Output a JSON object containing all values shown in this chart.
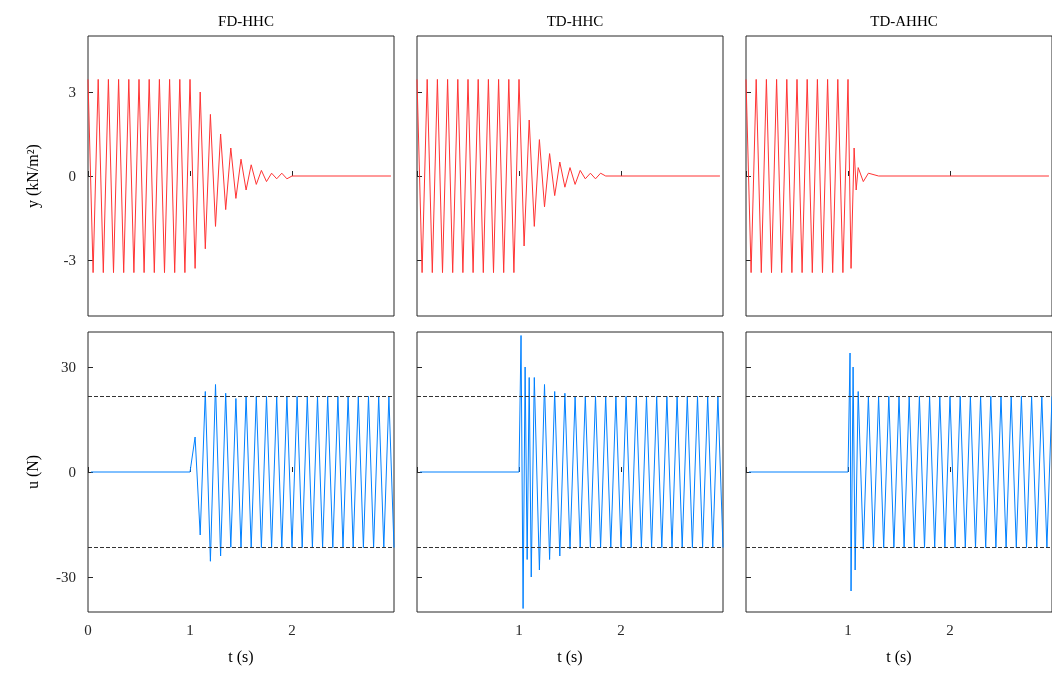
{
  "chart_data": [
    {
      "type": "line",
      "title": "FD-HHC",
      "ylabel": "y (kN/m²)",
      "xlim": [
        0,
        3
      ],
      "xticks": [
        0,
        1,
        2
      ],
      "ylim": [
        -5,
        5
      ],
      "yticks": [
        -3,
        0,
        3
      ],
      "tick_labels": "y",
      "marker": "none",
      "series": [
        {
          "color": "#ff3333",
          "x": [
            0,
            0.05,
            0.1,
            0.15,
            0.2,
            0.25,
            0.3,
            0.35,
            0.4,
            0.45,
            0.5,
            0.55,
            0.6,
            0.65,
            0.7,
            0.75,
            0.8,
            0.85,
            0.9,
            0.95,
            1.0,
            1.05,
            1.1,
            1.15,
            1.2,
            1.25,
            1.3,
            1.35,
            1.4,
            1.45,
            1.5,
            1.55,
            1.6,
            1.65,
            1.7,
            1.75,
            1.8,
            1.85,
            1.9,
            1.95,
            2.0,
            2.97
          ],
          "values": [
            3.45,
            -3.45,
            3.45,
            -3.45,
            3.45,
            -3.45,
            3.45,
            -3.45,
            3.45,
            -3.45,
            3.45,
            -3.45,
            3.45,
            -3.45,
            3.45,
            -3.45,
            3.45,
            -3.45,
            3.45,
            -3.45,
            3.45,
            -3.3,
            3.0,
            -2.6,
            2.2,
            -1.8,
            1.5,
            -1.2,
            1.0,
            -0.8,
            0.6,
            -0.5,
            0.4,
            -0.3,
            0.2,
            -0.2,
            0.1,
            -0.1,
            0.1,
            -0.1,
            0,
            0
          ]
        }
      ]
    },
    {
      "type": "line",
      "title": "TD-HHC",
      "xlim": [
        0,
        3
      ],
      "xticks": [
        0,
        1,
        2
      ],
      "ylim": [
        -5,
        5
      ],
      "yticks": [
        -3,
        0,
        3
      ],
      "tick_labels": false,
      "marker": "none",
      "series": [
        {
          "color": "#ff3333",
          "x": [
            0,
            0.05,
            0.1,
            0.15,
            0.2,
            0.25,
            0.3,
            0.35,
            0.4,
            0.45,
            0.5,
            0.55,
            0.6,
            0.65,
            0.7,
            0.75,
            0.8,
            0.85,
            0.9,
            0.95,
            1.0,
            1.05,
            1.1,
            1.15,
            1.2,
            1.25,
            1.3,
            1.35,
            1.4,
            1.45,
            1.5,
            1.55,
            1.6,
            1.65,
            1.7,
            1.75,
            1.8,
            1.85,
            2.97
          ],
          "values": [
            3.45,
            -3.45,
            3.45,
            -3.45,
            3.45,
            -3.45,
            3.45,
            -3.45,
            3.45,
            -3.45,
            3.45,
            -3.45,
            3.45,
            -3.45,
            3.45,
            -3.45,
            3.45,
            -3.45,
            3.45,
            -3.45,
            3.45,
            -2.5,
            2.0,
            -1.8,
            1.3,
            -1.1,
            0.8,
            -0.7,
            0.5,
            -0.4,
            0.3,
            -0.3,
            0.2,
            -0.1,
            0.1,
            -0.1,
            0.1,
            0,
            0
          ]
        }
      ]
    },
    {
      "type": "line",
      "title": "TD-AHHC",
      "xlim": [
        0,
        3
      ],
      "xticks": [
        0,
        1,
        2
      ],
      "ylim": [
        -5,
        5
      ],
      "yticks": [
        -3,
        0,
        3
      ],
      "tick_labels": false,
      "marker": "none",
      "series": [
        {
          "color": "#ff3333",
          "x": [
            0,
            0.05,
            0.1,
            0.15,
            0.2,
            0.25,
            0.3,
            0.35,
            0.4,
            0.45,
            0.5,
            0.55,
            0.6,
            0.65,
            0.7,
            0.75,
            0.8,
            0.85,
            0.9,
            0.95,
            1.0,
            1.03,
            1.06,
            1.08,
            1.1,
            1.15,
            1.2,
            1.3,
            2.97
          ],
          "values": [
            3.45,
            -3.45,
            3.45,
            -3.45,
            3.45,
            -3.45,
            3.45,
            -3.45,
            3.45,
            -3.45,
            3.45,
            -3.45,
            3.45,
            -3.45,
            3.45,
            -3.45,
            3.45,
            -3.45,
            3.45,
            -3.45,
            3.45,
            -3.3,
            1.0,
            -0.5,
            0.3,
            -0.2,
            0.1,
            0,
            0
          ]
        }
      ]
    },
    {
      "type": "line",
      "xlabel": "t (s)",
      "ylabel": "u (N)",
      "xlim": [
        0,
        3
      ],
      "xticks": [
        0,
        1,
        2
      ],
      "ylim": [
        -40,
        40
      ],
      "yticks": [
        -30,
        0,
        30
      ],
      "marker": "none",
      "ref_lines": [
        {
          "axis": "y",
          "value": 21.6,
          "color": "#333333",
          "line_style": "dashed"
        },
        {
          "axis": "y",
          "value": -21.6,
          "color": "#333333",
          "line_style": "dashed"
        }
      ],
      "series": [
        {
          "color": "#0080ff",
          "x": [
            0.03,
            1.0,
            1.05,
            1.1,
            1.15,
            1.2,
            1.25,
            1.3,
            1.35,
            1.4,
            1.45,
            1.5,
            1.55,
            1.6,
            1.65,
            1.7,
            1.75,
            1.8,
            1.85,
            1.9,
            1.95,
            2.0,
            2.05,
            2.1,
            2.15,
            2.2,
            2.25,
            2.3,
            2.35,
            2.4,
            2.45,
            2.5,
            2.55,
            2.6,
            2.65,
            2.7,
            2.75,
            2.8,
            2.85,
            2.9,
            2.95,
            3.0
          ],
          "values": [
            0,
            0,
            10,
            -18,
            23,
            -25.5,
            25,
            -24,
            22.5,
            -21.5,
            21,
            -21.6,
            21.6,
            -21.6,
            21.6,
            -21.6,
            21.6,
            -21.6,
            21.6,
            -21.6,
            21.6,
            -21.6,
            21.6,
            -21.6,
            21.6,
            -21.6,
            21.6,
            -21.6,
            21.6,
            -21.6,
            21.6,
            -21.6,
            21.6,
            -21.6,
            21.6,
            -21.6,
            21.6,
            -21.6,
            21.6,
            -21.6,
            21.6,
            -21.6
          ]
        }
      ]
    },
    {
      "type": "line",
      "xlabel": "t (s)",
      "xlim": [
        0,
        3
      ],
      "xticks": [
        {
          "value": 0,
          "label": null
        },
        1,
        2
      ],
      "ylim": [
        -40,
        40
      ],
      "yticks": [
        -30,
        0,
        30
      ],
      "tick_labels": "x",
      "marker": "none",
      "ref_lines": [
        {
          "axis": "y",
          "value": 21.6,
          "color": "#333333",
          "line_style": "dashed"
        },
        {
          "axis": "y",
          "value": -21.6,
          "color": "#333333",
          "line_style": "dashed"
        }
      ],
      "series": [
        {
          "color": "#0080ff",
          "x": [
            0.03,
            1.0,
            1.02,
            1.04,
            1.06,
            1.08,
            1.1,
            1.12,
            1.15,
            1.2,
            1.25,
            1.3,
            1.35,
            1.4,
            1.45,
            1.5,
            1.55,
            1.6,
            1.65,
            1.7,
            1.75,
            1.8,
            1.85,
            1.9,
            1.95,
            2.0,
            2.05,
            2.1,
            2.15,
            2.2,
            2.25,
            2.3,
            2.35,
            2.4,
            2.45,
            2.5,
            2.55,
            2.6,
            2.65,
            2.7,
            2.75,
            2.8,
            2.85,
            2.9,
            2.95,
            3.0
          ],
          "values": [
            0,
            0,
            39,
            -39,
            30,
            -25,
            27,
            -30,
            27,
            -28,
            25,
            -25,
            23,
            -24,
            22.5,
            -22,
            21.6,
            -21.6,
            21.6,
            -21.6,
            21.6,
            -21.6,
            21.6,
            -21.6,
            21.6,
            -21.6,
            21.6,
            -21.6,
            21.6,
            -21.6,
            21.6,
            -21.6,
            21.6,
            -21.6,
            21.6,
            -21.6,
            21.6,
            -21.6,
            21.6,
            -21.6,
            21.6,
            -21.6,
            21.6,
            -21.6,
            21.6,
            -21.6
          ]
        }
      ]
    },
    {
      "type": "line",
      "xlabel": "t (s)",
      "xlim": [
        0,
        3
      ],
      "xticks": [
        {
          "value": 0,
          "label": null
        },
        1,
        2
      ],
      "ylim": [
        -40,
        40
      ],
      "yticks": [
        -30,
        0,
        30
      ],
      "tick_labels": "x",
      "marker": "none",
      "ref_lines": [
        {
          "axis": "y",
          "value": 21.6,
          "color": "#333333",
          "line_style": "dashed"
        },
        {
          "axis": "y",
          "value": -21.6,
          "color": "#333333",
          "line_style": "dashed"
        }
      ],
      "series": [
        {
          "color": "#0080ff",
          "x": [
            0.03,
            1.0,
            1.02,
            1.03,
            1.05,
            1.07,
            1.1,
            1.15,
            1.2,
            1.25,
            1.3,
            1.35,
            1.4,
            1.45,
            1.5,
            1.55,
            1.6,
            1.65,
            1.7,
            1.75,
            1.8,
            1.85,
            1.9,
            1.95,
            2.0,
            2.05,
            2.1,
            2.15,
            2.2,
            2.25,
            2.3,
            2.35,
            2.4,
            2.45,
            2.5,
            2.55,
            2.6,
            2.65,
            2.7,
            2.75,
            2.8,
            2.85,
            2.9,
            2.95,
            3.0
          ],
          "values": [
            0,
            0,
            34,
            -34,
            30,
            -28,
            23,
            -22,
            21.6,
            -21.6,
            21.6,
            -21.6,
            21.6,
            -21.6,
            21.6,
            -21.6,
            21.6,
            -21.6,
            21.6,
            -21.6,
            21.6,
            -21.6,
            21.6,
            -21.6,
            21.6,
            -21.6,
            21.6,
            -21.6,
            21.6,
            -21.6,
            21.6,
            -21.6,
            21.6,
            -21.6,
            21.6,
            -21.6,
            21.6,
            -21.6,
            21.6,
            -21.6,
            21.6,
            -21.6,
            21.6,
            -21.6,
            21.6
          ]
        }
      ]
    }
  ]
}
